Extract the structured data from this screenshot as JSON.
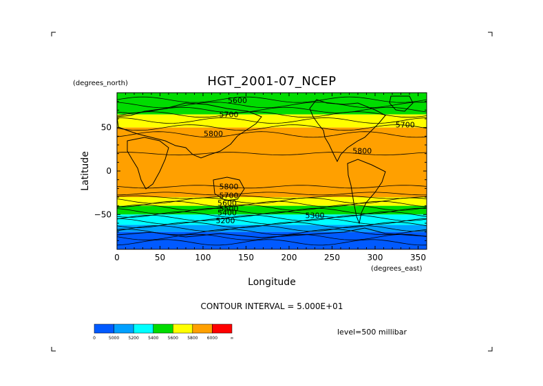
{
  "chart_data": {
    "type": "heatmap",
    "title": "HGT_2001-07_NCEP",
    "xlabel": "Longitude",
    "ylabel": "Latitude",
    "x_unit_label": "(degrees_east)",
    "y_unit_label": "(degrees_north)",
    "xlim": [
      0,
      360
    ],
    "ylim": [
      -90,
      90
    ],
    "x_ticks": [
      "0",
      "50",
      "100",
      "150",
      "200",
      "250",
      "300",
      "350"
    ],
    "x_tick_values": [
      0,
      50,
      100,
      150,
      200,
      250,
      300,
      350
    ],
    "y_ticks": [
      "50",
      "0",
      "−50"
    ],
    "y_tick_values": [
      50,
      0,
      -50
    ],
    "contour_interval_text": "CONTOUR INTERVAL = 5.000E+01",
    "level_text": "level=500 millibar",
    "colorbar": {
      "colors": [
        "#005aff",
        "#00a0ff",
        "#00ffff",
        "#00dc00",
        "#ffff00",
        "#ffa000",
        "#ff0000"
      ],
      "labels": [
        "0",
        "5000",
        "5200",
        "5400",
        "5600",
        "5800",
        "6000",
        "∞"
      ]
    },
    "bands": [
      {
        "lat_min": 65,
        "lat_max": 90,
        "value_band": "5400-5600",
        "color": "#00dc00"
      },
      {
        "lat_min": 50,
        "lat_max": 65,
        "value_band": "5600-5800",
        "color": "#ffff00"
      },
      {
        "lat_min": -30,
        "lat_max": 50,
        "value_band": "5800-6000",
        "color": "#ffa000"
      },
      {
        "lat_min": -40,
        "lat_max": -30,
        "value_band": "5600-5800",
        "color": "#ffff00"
      },
      {
        "lat_min": -50,
        "lat_max": -40,
        "value_band": "5400-5600",
        "color": "#00dc00"
      },
      {
        "lat_min": -62,
        "lat_max": -50,
        "value_band": "5200-5400",
        "color": "#00ffff"
      },
      {
        "lat_min": -70,
        "lat_max": -62,
        "value_band": "5000-5200",
        "color": "#00a0ff"
      },
      {
        "lat_min": -90,
        "lat_max": -70,
        "value_band": "0-5000",
        "color": "#005aff"
      }
    ],
    "contour_labels": [
      {
        "text": "5600",
        "lon": 140,
        "lat": 78
      },
      {
        "text": "5700",
        "lon": 130,
        "lat": 62
      },
      {
        "text": "5800",
        "lon": 112,
        "lat": 40
      },
      {
        "text": "5700",
        "lon": 335,
        "lat": 50
      },
      {
        "text": "5800",
        "lon": 285,
        "lat": 20
      },
      {
        "text": "5800",
        "lon": 130,
        "lat": -21
      },
      {
        "text": "5700",
        "lon": 130,
        "lat": -31
      },
      {
        "text": "5600",
        "lon": 128,
        "lat": -40
      },
      {
        "text": "5500",
        "lon": 130,
        "lat": -46
      },
      {
        "text": "5400",
        "lon": 128,
        "lat": -51
      },
      {
        "text": "5300",
        "lon": 230,
        "lat": -54
      },
      {
        "text": "5200",
        "lon": 126,
        "lat": -60
      }
    ]
  }
}
